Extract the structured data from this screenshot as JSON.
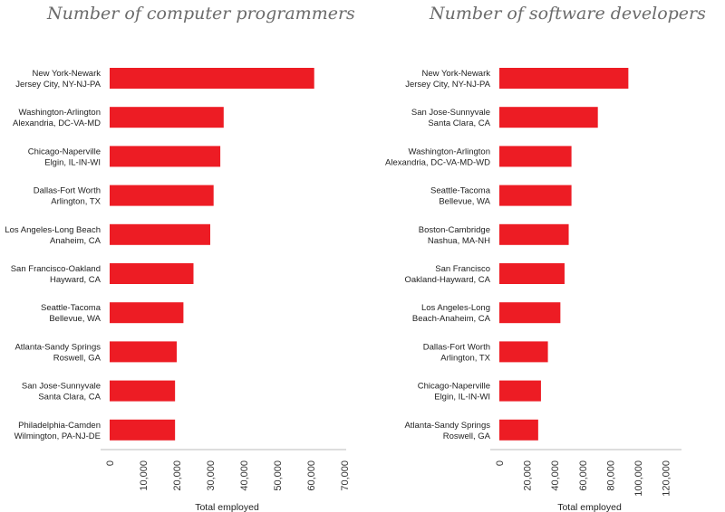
{
  "chart_data": [
    {
      "type": "bar",
      "orientation": "horizontal",
      "title": "Number of computer programmers",
      "xlabel": "Total employed",
      "categories": [
        [
          "New York-Newark",
          "Jersey City, NY-NJ-PA"
        ],
        [
          "Washington-Arlington",
          "Alexandria, DC-VA-MD"
        ],
        [
          "Chicago-Naperville",
          "Elgin, IL-IN-WI"
        ],
        [
          "Dallas-Fort Worth",
          "Arlington, TX"
        ],
        [
          "Los Angeles-Long Beach",
          "Anaheim, CA"
        ],
        [
          "San Francisco-Oakland",
          "Hayward, CA"
        ],
        [
          "Seattle-Tacoma",
          "Bellevue, WA"
        ],
        [
          "Atlanta-Sandy Springs",
          "Roswell, GA"
        ],
        [
          "San Jose-Sunnyvale",
          "Santa Clara, CA"
        ],
        [
          "Philadelphia-Camden",
          "Wilmington, PA-NJ-DE"
        ]
      ],
      "values": [
        61000,
        34000,
        33000,
        31000,
        30000,
        25000,
        22000,
        20000,
        19500,
        19500
      ],
      "xlim": [
        0,
        70000
      ],
      "ticks": [
        0,
        10000,
        20000,
        30000,
        40000,
        50000,
        60000,
        70000
      ],
      "tick_labels": [
        "0",
        "10,000",
        "20,000",
        "30,000",
        "40,000",
        "50,000",
        "60,000",
        "70,000"
      ],
      "bar_color": "#ed1c24",
      "grid": false
    },
    {
      "type": "bar",
      "orientation": "horizontal",
      "title": "Number of software developers",
      "xlabel": "Total employed",
      "categories": [
        [
          "New York-Newark",
          "Jersey City, NY-NJ-PA"
        ],
        [
          "San Jose-Sunnyvale",
          "Santa Clara, CA"
        ],
        [
          "Washington-Arlington",
          "Alexandria, DC-VA-MD-WD"
        ],
        [
          "Seattle-Tacoma",
          "Bellevue, WA"
        ],
        [
          "Boston-Cambridge",
          "Nashua, MA-NH"
        ],
        [
          "San Francisco",
          "Oakland-Hayward, CA"
        ],
        [
          "Los Angeles-Long",
          "Beach-Anaheim, CA"
        ],
        [
          "Dallas-Fort Worth",
          "Arlington, TX"
        ],
        [
          "Chicago-Naperville",
          "Elgin, IL-IN-WI"
        ],
        [
          "Atlanta-Sandy Springs",
          "Roswell, GA"
        ]
      ],
      "values": [
        93000,
        71000,
        52000,
        52000,
        50000,
        47000,
        44000,
        35000,
        30000,
        28000
      ],
      "xlim": [
        0,
        130000
      ],
      "ticks": [
        0,
        20000,
        40000,
        60000,
        80000,
        100000,
        120000
      ],
      "tick_labels": [
        "0",
        "20,000",
        "40,000",
        "60,000",
        "80,000",
        "100,000",
        "120,000"
      ],
      "bar_color": "#ed1c24",
      "grid": false
    }
  ]
}
